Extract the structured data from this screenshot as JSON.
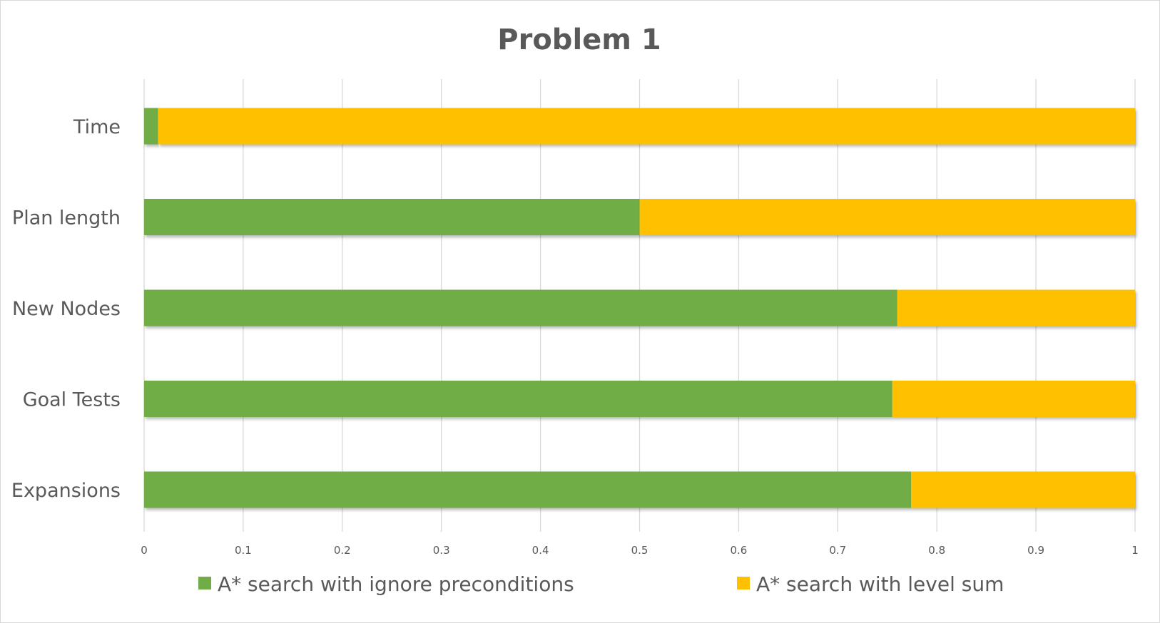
{
  "chart_data": {
    "type": "bar",
    "orientation": "horizontal",
    "stacked": true,
    "title": "Problem 1",
    "categories": [
      "Time",
      "Plan length",
      "New Nodes",
      "Goal Tests",
      "Expansions"
    ],
    "series": [
      {
        "name": "A* search with ignore preconditions",
        "color": "#70ad47",
        "values": [
          0.014,
          0.5,
          0.76,
          0.755,
          0.774
        ]
      },
      {
        "name": "A* search with level sum",
        "color": "#ffc000",
        "values": [
          0.986,
          0.5,
          0.24,
          0.245,
          0.226
        ]
      }
    ],
    "xlim": [
      0,
      1
    ],
    "xticks": [
      "0",
      "0.1",
      "0.2",
      "0.3",
      "0.4",
      "0.5",
      "0.6",
      "0.7",
      "0.8",
      "0.9",
      "1"
    ],
    "grid": true,
    "legend_position": "bottom"
  }
}
